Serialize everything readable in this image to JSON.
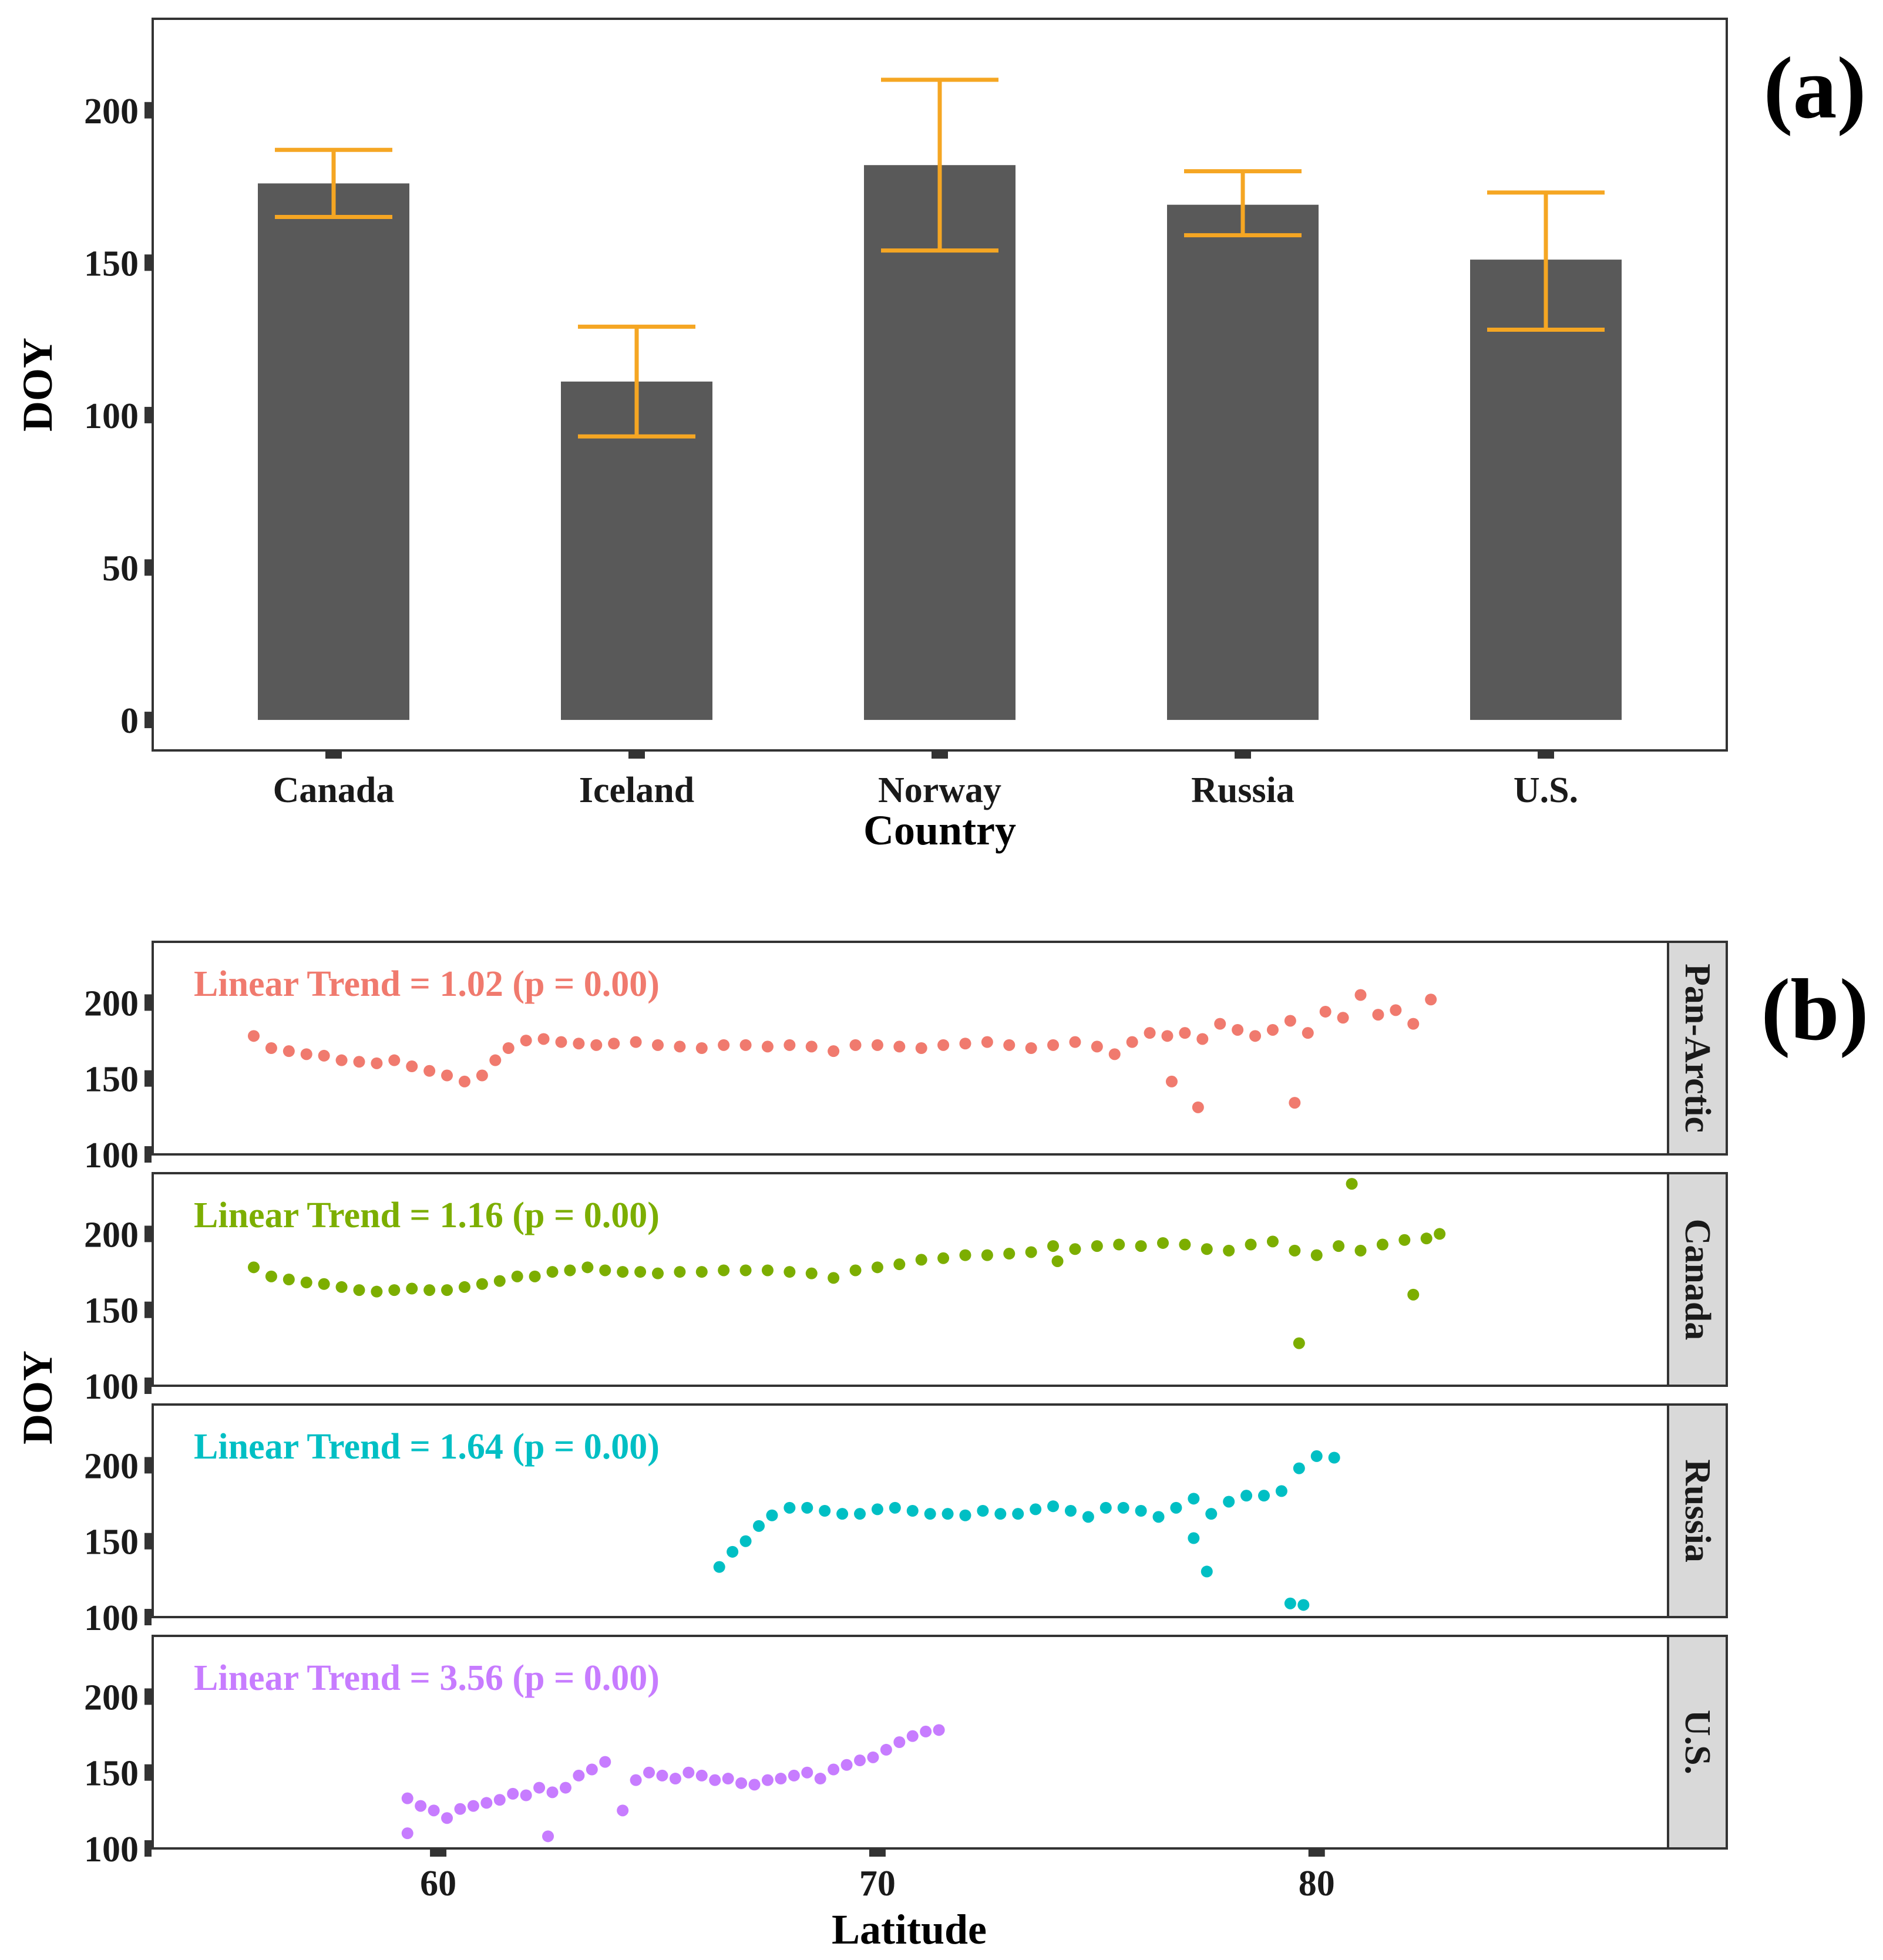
{
  "figure": {
    "panel_a_tag": "(a)",
    "panel_b_tag": "(b)"
  },
  "chart_data": [
    {
      "type": "bar",
      "panel": "(a)",
      "categories": [
        "Canada",
        "Iceland",
        "Norway",
        "Russia",
        "U.S."
      ],
      "values": [
        176,
        111,
        182,
        169,
        151
      ],
      "error_low": [
        165,
        93,
        154,
        159,
        128
      ],
      "error_high": [
        187,
        129,
        210,
        180,
        173
      ],
      "xlabel": "Country",
      "ylabel": "DOY",
      "ylim": [
        -10,
        230
      ],
      "yticks": [
        0,
        50,
        100,
        150,
        200
      ],
      "bar_color": "#595959",
      "error_color": "#F5A623",
      "grid": false
    },
    {
      "type": "scatter",
      "panel": "(b)",
      "xlabel": "Latitude",
      "ylabel": "DOY",
      "xlim": [
        53.5,
        88
      ],
      "ylim": [
        100,
        240
      ],
      "xticks": [
        60,
        70,
        80
      ],
      "yticks": [
        100,
        150,
        200
      ],
      "grid": false,
      "facets": [
        {
          "strip": "Pan-Arctic",
          "trend_label": "Linear Trend = 1.02 (p = 0.00)",
          "color": "#F07A6E",
          "x": [
            55.8,
            56.2,
            56.6,
            57.0,
            57.4,
            57.8,
            58.2,
            58.6,
            59.0,
            59.4,
            59.8,
            60.2,
            60.6,
            61.0,
            61.3,
            61.6,
            62.0,
            62.4,
            62.8,
            63.2,
            63.6,
            64.0,
            64.5,
            65.0,
            65.5,
            66.0,
            66.5,
            67.0,
            67.5,
            68.0,
            68.5,
            69.0,
            69.5,
            70.0,
            70.5,
            71.0,
            71.5,
            72.0,
            72.5,
            73.0,
            73.5,
            74.0,
            74.5,
            75.0,
            75.4,
            75.8,
            76.2,
            76.6,
            77.0,
            77.4,
            77.8,
            78.2,
            78.6,
            79.0,
            79.4,
            79.8,
            80.2,
            80.6,
            81.0,
            81.4,
            81.8,
            82.2,
            82.6,
            76.7,
            77.3,
            79.5
          ],
          "y": [
            178,
            170,
            168,
            166,
            165,
            162,
            161,
            160,
            162,
            158,
            155,
            152,
            148,
            152,
            162,
            170,
            175,
            176,
            174,
            173,
            172,
            173,
            174,
            172,
            171,
            170,
            172,
            172,
            171,
            172,
            171,
            168,
            172,
            172,
            171,
            170,
            172,
            173,
            174,
            172,
            170,
            172,
            174,
            171,
            166,
            174,
            180,
            178,
            180,
            176,
            186,
            182,
            178,
            182,
            188,
            180,
            194,
            190,
            205,
            192,
            195,
            186,
            202,
            148,
            131,
            134
          ]
        },
        {
          "strip": "Canada",
          "trend_label": "Linear Trend = 1.16 (p = 0.00)",
          "color": "#7CAE00",
          "x": [
            55.8,
            56.2,
            56.6,
            57.0,
            57.4,
            57.8,
            58.2,
            58.6,
            59.0,
            59.4,
            59.8,
            60.2,
            60.6,
            61.0,
            61.4,
            61.8,
            62.2,
            62.6,
            63.0,
            63.4,
            63.8,
            64.2,
            64.6,
            65.0,
            65.5,
            66.0,
            66.5,
            67.0,
            67.5,
            68.0,
            68.5,
            69.0,
            69.5,
            70.0,
            70.5,
            71.0,
            71.5,
            72.0,
            72.5,
            73.0,
            73.5,
            74.0,
            74.5,
            75.0,
            75.5,
            76.0,
            76.5,
            77.0,
            77.5,
            78.0,
            78.5,
            79.0,
            79.5,
            80.0,
            80.5,
            81.0,
            81.5,
            82.0,
            82.5,
            82.8,
            74.1,
            79.6,
            80.8,
            82.2
          ],
          "y": [
            178,
            172,
            170,
            168,
            167,
            165,
            163,
            162,
            163,
            164,
            163,
            163,
            165,
            167,
            169,
            172,
            172,
            175,
            176,
            178,
            176,
            175,
            175,
            174,
            175,
            175,
            176,
            176,
            176,
            175,
            174,
            171,
            176,
            178,
            180,
            183,
            184,
            186,
            186,
            187,
            188,
            192,
            190,
            192,
            193,
            192,
            194,
            193,
            190,
            189,
            193,
            195,
            189,
            186,
            192,
            189,
            193,
            196,
            197,
            200,
            182,
            128,
            233,
            160
          ]
        },
        {
          "strip": "Russia",
          "trend_label": "Linear Trend = 1.64 (p = 0.00)",
          "color": "#00BFC4",
          "x": [
            66.4,
            66.7,
            67.0,
            67.3,
            67.6,
            68.0,
            68.4,
            68.8,
            69.2,
            69.6,
            70.0,
            70.4,
            70.8,
            71.2,
            71.6,
            72.0,
            72.4,
            72.8,
            73.2,
            73.6,
            74.0,
            74.4,
            74.8,
            75.2,
            75.6,
            76.0,
            76.4,
            76.8,
            77.2,
            77.6,
            78.0,
            78.4,
            78.8,
            79.2,
            79.6,
            80.0,
            80.4,
            77.2,
            77.5,
            79.4,
            79.7
          ],
          "y": [
            133,
            143,
            150,
            160,
            167,
            172,
            172,
            170,
            168,
            168,
            171,
            172,
            170,
            168,
            168,
            167,
            170,
            168,
            168,
            171,
            173,
            170,
            166,
            172,
            172,
            170,
            166,
            172,
            178,
            168,
            176,
            180,
            180,
            183,
            198,
            206,
            205,
            152,
            130,
            109,
            108
          ]
        },
        {
          "strip": "U.S.",
          "trend_label": "Linear Trend = 3.56 (p = 0.00)",
          "color": "#C77CFF",
          "x": [
            59.3,
            59.6,
            59.9,
            60.2,
            60.5,
            60.8,
            61.1,
            61.4,
            61.7,
            62.0,
            62.3,
            62.6,
            62.9,
            63.2,
            63.5,
            63.8,
            64.2,
            64.5,
            64.8,
            65.1,
            65.4,
            65.7,
            66.0,
            66.3,
            66.6,
            66.9,
            67.2,
            67.5,
            67.8,
            68.1,
            68.4,
            68.7,
            69.0,
            69.3,
            69.6,
            69.9,
            70.2,
            70.5,
            70.8,
            71.1,
            71.4,
            62.5,
            59.3
          ],
          "y": [
            133,
            128,
            125,
            120,
            126,
            128,
            130,
            132,
            136,
            135,
            140,
            137,
            140,
            148,
            152,
            157,
            125,
            145,
            150,
            148,
            146,
            150,
            148,
            145,
            146,
            143,
            142,
            145,
            146,
            148,
            150,
            146,
            152,
            155,
            158,
            160,
            165,
            170,
            174,
            177,
            178,
            108,
            110
          ]
        }
      ]
    }
  ]
}
